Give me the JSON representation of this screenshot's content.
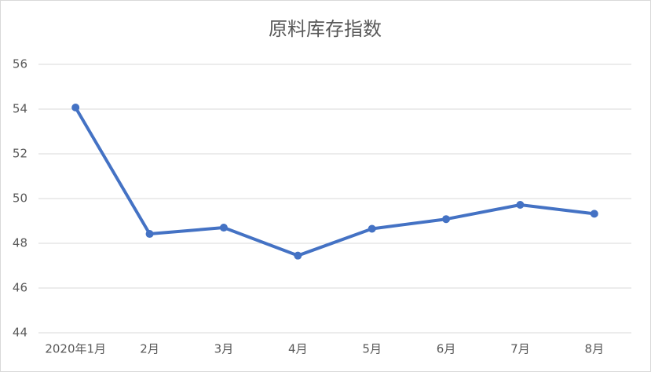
{
  "chart_data": {
    "type": "line",
    "title": "原料库存指数",
    "categories": [
      "2020年1月",
      "2月",
      "3月",
      "4月",
      "5月",
      "6月",
      "7月",
      "8月"
    ],
    "series": [
      {
        "name": "原料库存指数",
        "color": "#4472c4",
        "values": [
          54.07,
          48.42,
          48.7,
          47.45,
          48.65,
          49.08,
          49.72,
          49.32
        ]
      }
    ],
    "ylim": [
      44,
      56
    ],
    "yticks": [
      44,
      46,
      48,
      50,
      52,
      54,
      56
    ],
    "grid": true
  }
}
